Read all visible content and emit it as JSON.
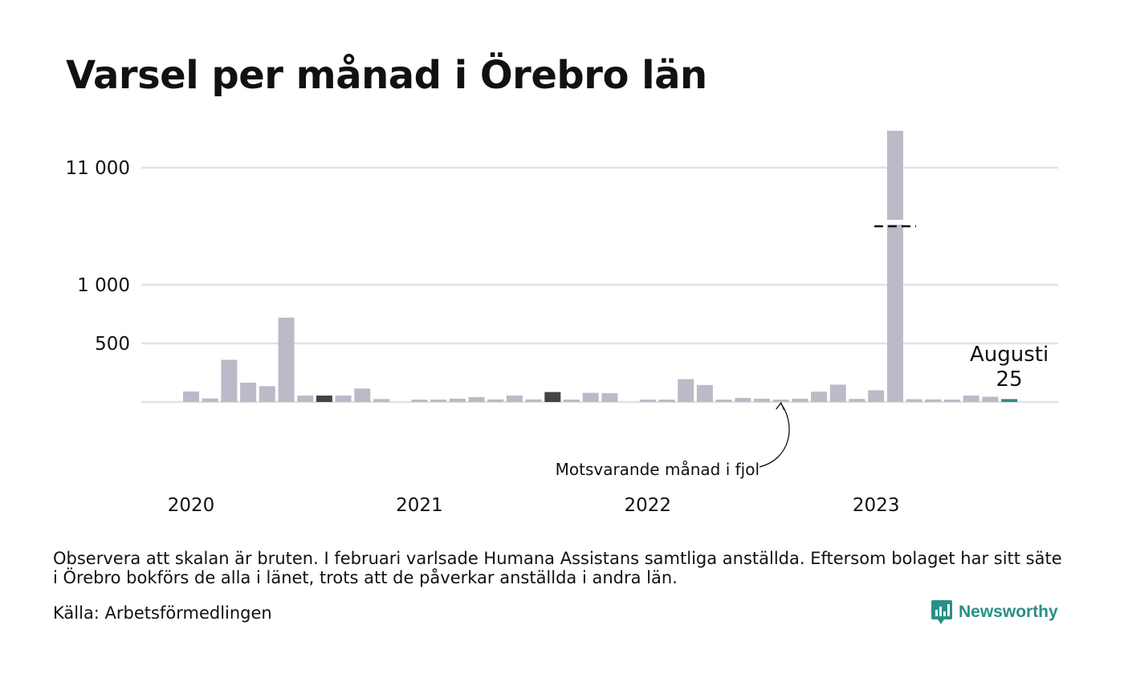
{
  "title": "Varsel per månad i Örebro län",
  "footnote": "Observera att skalan är bruten. I februari varlsade Humana Assistans samtliga anställda. Eftersom bolaget har sitt säte i Örebro bokförs de alla i länet, trots att de påverkar anställda i andra län.",
  "source": "Källa: Arbetsförmedlingen",
  "brand": {
    "name": "Newsworthy",
    "icon": "newsworthy-chart-icon",
    "color": "#2a8f88"
  },
  "colors": {
    "bar": "#bcbac8",
    "bar_previous_year": "#444444",
    "bar_current": "#2a8f88",
    "grid": "#e2e2e2"
  },
  "chart_data": {
    "type": "bar",
    "title": "Varsel per månad i Örebro län",
    "scale": "broken",
    "y_ticks": [
      {
        "value": 500,
        "label": "500"
      },
      {
        "value": 1000,
        "label": "1 000"
      },
      {
        "value": 11000,
        "label": "11 000"
      }
    ],
    "x_year_labels": [
      "2020",
      "2021",
      "2022",
      "2023"
    ],
    "months": [
      "2020-01",
      "2020-02",
      "2020-03",
      "2020-04",
      "2020-05",
      "2020-06",
      "2020-07",
      "2020-08",
      "2020-09",
      "2020-10",
      "2020-11",
      "2020-12",
      "2021-01",
      "2021-02",
      "2021-03",
      "2021-04",
      "2021-05",
      "2021-06",
      "2021-07",
      "2021-08",
      "2021-09",
      "2021-10",
      "2021-11",
      "2021-12",
      "2022-01",
      "2022-02",
      "2022-03",
      "2022-04",
      "2022-05",
      "2022-06",
      "2022-07",
      "2022-08",
      "2022-09",
      "2022-10",
      "2022-11",
      "2022-12",
      "2023-01",
      "2023-02",
      "2023-03",
      "2023-04",
      "2023-05",
      "2023-06",
      "2023-07",
      "2023-08"
    ],
    "values": [
      90,
      30,
      360,
      165,
      135,
      720,
      55,
      55,
      55,
      115,
      25,
      0,
      12,
      18,
      28,
      42,
      22,
      55,
      22,
      85,
      12,
      78,
      75,
      0,
      20,
      12,
      195,
      145,
      18,
      35,
      28,
      8,
      28,
      88,
      148,
      26,
      100,
      11800,
      24,
      22,
      10,
      55,
      45,
      25
    ],
    "highlight_previous_year_indices": [
      7,
      19
    ],
    "highlight_current_index": 43,
    "current_label": {
      "month": "Augusti",
      "value": "25"
    },
    "annotation": "Motsvarande månad i fjol"
  }
}
